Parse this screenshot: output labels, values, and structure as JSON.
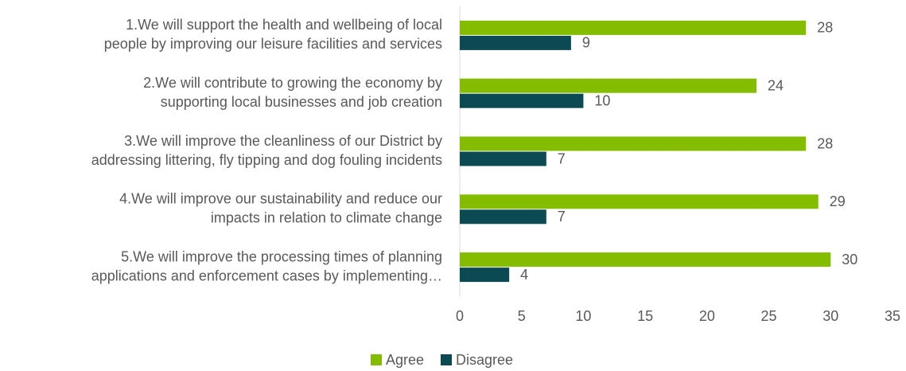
{
  "chart_data": {
    "type": "bar",
    "orientation": "horizontal",
    "categories": [
      [
        "1.We will support the health and wellbeing of local",
        "people by improving our leisure facilities and services"
      ],
      [
        "2.We will contribute to growing the economy by",
        "supporting local businesses and job creation"
      ],
      [
        "3.We will improve the cleanliness of our District by",
        "addressing littering, fly tipping and dog fouling incidents"
      ],
      [
        "4.We will improve our sustainability and reduce our",
        "impacts in relation to climate change"
      ],
      [
        "5.We will improve the processing times of planning",
        "applications and enforcement cases by implementing…"
      ]
    ],
    "series": [
      {
        "name": "Agree",
        "color": "#84bd00",
        "values": [
          28,
          24,
          28,
          29,
          30
        ]
      },
      {
        "name": "Disagree",
        "color": "#0b4a52",
        "values": [
          9,
          10,
          7,
          7,
          4
        ]
      }
    ],
    "xlim": [
      0,
      35
    ],
    "xticks": [
      0,
      5,
      10,
      15,
      20,
      25,
      30,
      35
    ],
    "grid": false,
    "legend": "bottom"
  }
}
